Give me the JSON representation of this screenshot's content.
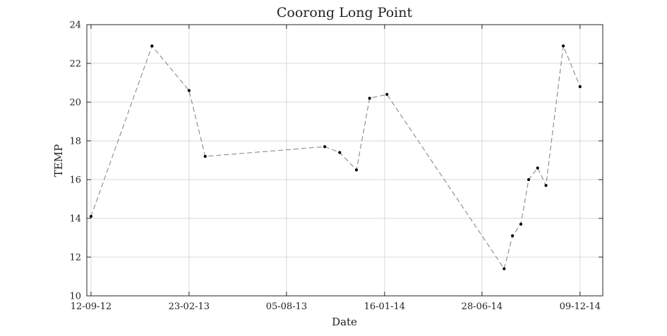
{
  "chart_data": {
    "type": "line",
    "title": "Coorong Long Point",
    "xlabel": "Date",
    "ylabel": "TEMP",
    "x_tick_labels": [
      "12-09-12",
      "23-02-13",
      "05-08-13",
      "16-01-14",
      "28-06-14",
      "09-12-14"
    ],
    "y_tick_labels": [
      "10",
      "12",
      "14",
      "16",
      "18",
      "20",
      "22",
      "24"
    ],
    "ylim": [
      10,
      24
    ],
    "xlim": [
      "2012-09-05",
      "2015-01-16"
    ],
    "grid": true,
    "line_style": "dashed",
    "colors": {
      "line": "#8a8a8a",
      "marker": "#000000",
      "grid": "#d9d9d9",
      "axes": "#262626"
    },
    "series": [
      {
        "x": [
          "2012-09-12",
          "2012-12-23",
          "2013-02-23",
          "2013-03-22",
          "2013-10-08",
          "2013-11-02",
          "2013-11-30",
          "2013-12-22",
          "2014-01-20",
          "2014-08-04",
          "2014-08-18",
          "2014-09-01",
          "2014-09-14",
          "2014-09-29",
          "2014-10-13",
          "2014-11-11",
          "2014-12-09"
        ],
        "values": [
          14.1,
          22.9,
          20.6,
          17.2,
          17.7,
          17.4,
          16.5,
          20.2,
          20.4,
          11.4,
          13.1,
          13.7,
          16.0,
          16.6,
          15.7,
          22.9,
          20.8
        ]
      }
    ]
  }
}
